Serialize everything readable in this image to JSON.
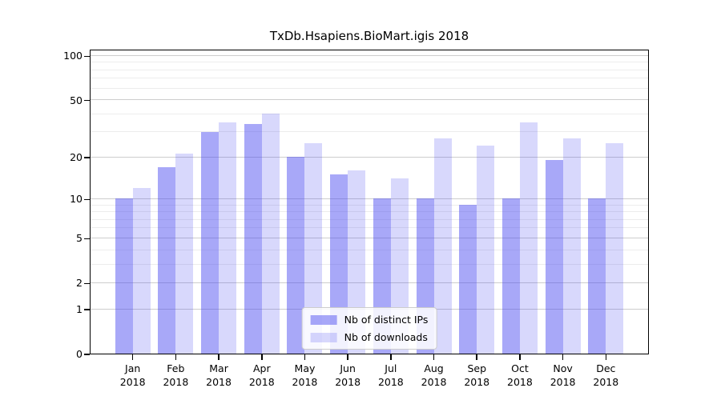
{
  "chart_data": {
    "type": "bar",
    "title": "TxDb.Hsapiens.BioMart.igis 2018",
    "year": "2018",
    "months": [
      "Jan",
      "Feb",
      "Mar",
      "Apr",
      "May",
      "Jun",
      "Jul",
      "Aug",
      "Sep",
      "Oct",
      "Nov",
      "Dec"
    ],
    "categories": [
      "Jan 2018",
      "Feb 2018",
      "Mar 2018",
      "Apr 2018",
      "May 2018",
      "Jun 2018",
      "Jul 2018",
      "Aug 2018",
      "Sep 2018",
      "Oct 2018",
      "Nov 2018",
      "Dec 2018"
    ],
    "series": [
      {
        "name": "Nb of distinct IPs",
        "color": "rgba(70,70,240,0.47)",
        "values": [
          10,
          17,
          30,
          34,
          20,
          15,
          10,
          10,
          9,
          10,
          19,
          10
        ]
      },
      {
        "name": "Nb of downloads",
        "color": "rgba(70,70,240,0.21)",
        "values": [
          12,
          21,
          35,
          40,
          25,
          16,
          14,
          27,
          24,
          35,
          27,
          25
        ]
      }
    ],
    "yscale": "log1p",
    "ylim": [
      0,
      111
    ],
    "y_major_ticks": [
      0,
      1,
      2,
      5,
      10,
      20,
      50,
      100
    ],
    "y_minor_ticks": [
      3,
      4,
      6,
      7,
      8,
      9,
      30,
      40,
      60,
      70,
      80,
      90
    ],
    "grid": true,
    "legend_position": "lower center",
    "xlabel": "",
    "ylabel": ""
  },
  "colors": {
    "axis": "#000000",
    "grid_major": "#cdcdcd",
    "grid_minor": "#ececec",
    "background": "#ffffff",
    "legend_border": "#cccccc"
  }
}
